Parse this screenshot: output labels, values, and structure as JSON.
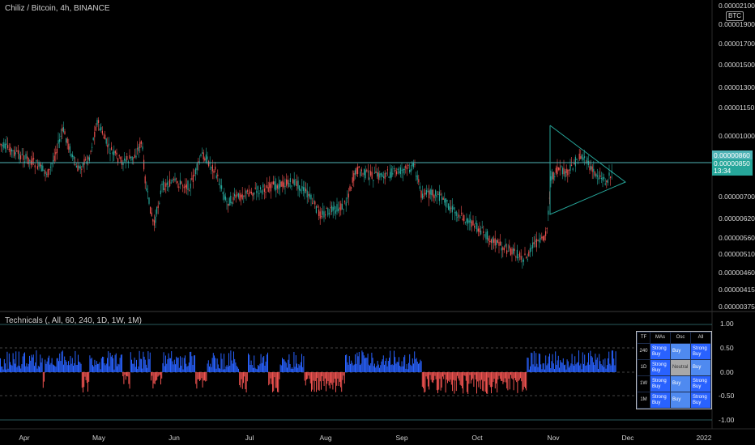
{
  "header": {
    "title": "Chiliz / Bitcoin, 4h, BINANCE",
    "currency_badge": "BTC"
  },
  "price_axis": {
    "labels": [
      "0.00002100",
      "0.00001900",
      "0.00001700",
      "0.00001500",
      "0.00001300",
      "0.00001150",
      "0.00001000",
      "0.00000860",
      "0.00000700",
      "0.00000620",
      "0.00000560",
      "0.00000510",
      "0.00000460",
      "0.00000415",
      "0.00000375"
    ],
    "price_line_label": "0.00000860",
    "last_price_label": "0.00000850",
    "countdown_label": "13:34",
    "colors": {
      "line_tag": "#4fb3b6",
      "last_tag": "#26a69a"
    }
  },
  "indicator": {
    "title": "Technicals (, All, 60, 240, 1D, 1W, 1M)",
    "axis_labels": [
      "1.00",
      "0.50",
      "0.00",
      "-0.50",
      "-1.00"
    ],
    "colors": {
      "positive": "#2962ff",
      "negative": "#ef5350"
    }
  },
  "technicals_table": {
    "headers": [
      "TF",
      "MAs",
      "Osc",
      "All"
    ],
    "rows": [
      {
        "tf": "240",
        "mas": "Strong Buy",
        "osc": "Buy",
        "all": "Strong Buy"
      },
      {
        "tf": "1D",
        "mas": "Strong Buy",
        "osc": "Neutral",
        "all": "Buy"
      },
      {
        "tf": "1W",
        "mas": "Strong Buy",
        "osc": "Buy",
        "all": "Strong Buy"
      },
      {
        "tf": "1M",
        "mas": "Strong Buy",
        "osc": "Buy",
        "all": "Strong Buy"
      }
    ]
  },
  "time_axis": {
    "labels": [
      "Apr",
      "May",
      "Jun",
      "Jul",
      "Aug",
      "Sep",
      "Oct",
      "Nov",
      "Dec",
      "2022"
    ]
  },
  "colors": {
    "up": "#26a69a",
    "down": "#ef5350",
    "triangle": "#26a69a",
    "hline": "#4fb3b6"
  }
}
